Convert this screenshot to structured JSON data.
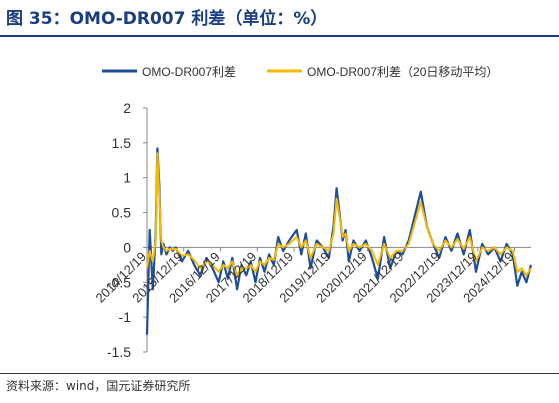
{
  "header": {
    "title": "图 35：OMO-DR007 利差（单位：%）"
  },
  "footer": {
    "source": "资料来源：wind，国元证券研究所"
  },
  "colors": {
    "title": "#1a3e7e",
    "series_daily": "#1f4e99",
    "series_ma": "#f5b800"
  },
  "chart_data": {
    "type": "line",
    "title": "",
    "xlabel": "",
    "ylabel": "",
    "ylim": [
      -1.5,
      2
    ],
    "y_ticks": [
      "2",
      "1.5",
      "1",
      "0.5",
      "0",
      "-0.5",
      "-1",
      "-1.5"
    ],
    "x_ticks": [
      "2014/12/19",
      "2015/12/19",
      "2016/12/19",
      "2017/12/19",
      "2018/12/19",
      "2019/12/19",
      "2020/12/19",
      "2021/12/19",
      "2022/12/19",
      "2023/12/19",
      "2024/12/19"
    ],
    "x_range": [
      "2014/12/19",
      "2025/05/31"
    ],
    "legend": {
      "position": "top",
      "entries": [
        "OMO-DR007利差",
        "OMO-DR007利差（20日移动平均）"
      ]
    },
    "grid": false,
    "series": [
      {
        "name": "OMO-DR007利差",
        "color": "#1f4e99",
        "x": [
          "2014/12/19",
          "2015/01/15",
          "2015/02/15",
          "2015/03/15",
          "2015/04/01",
          "2015/04/20",
          "2015/05/10",
          "2015/06/01",
          "2015/07/01",
          "2015/08/01",
          "2015/09/01",
          "2015/10/01",
          "2015/12/01",
          "2016/02/01",
          "2016/04/01",
          "2016/06/01",
          "2016/08/01",
          "2016/10/01",
          "2016/12/01",
          "2017/01/15",
          "2017/03/01",
          "2017/04/15",
          "2017/06/01",
          "2017/07/15",
          "2017/09/01",
          "2017/10/15",
          "2017/12/01",
          "2018/01/15",
          "2018/03/01",
          "2018/04/15",
          "2018/06/01",
          "2018/07/15",
          "2018/09/01",
          "2018/11/01",
          "2019/01/15",
          "2019/03/01",
          "2019/04/15",
          "2019/06/01",
          "2019/08/01",
          "2019/10/01",
          "2019/12/01",
          "2020/01/15",
          "2020/02/15",
          "2020/03/15",
          "2020/04/15",
          "2020/05/15",
          "2020/06/15",
          "2020/08/01",
          "2020/10/01",
          "2020/12/01",
          "2021/02/01",
          "2021/04/01",
          "2021/06/01",
          "2021/08/01",
          "2021/10/01",
          "2021/12/01",
          "2022/02/01",
          "2022/04/01",
          "2022/06/01",
          "2022/08/01",
          "2022/10/01",
          "2022/12/01",
          "2023/02/01",
          "2023/04/01",
          "2023/06/01",
          "2023/08/01",
          "2023/10/01",
          "2023/12/01",
          "2024/02/01",
          "2024/04/01",
          "2024/06/01",
          "2024/08/01",
          "2024/10/01",
          "2024/12/01",
          "2025/01/15",
          "2025/03/01",
          "2025/04/15",
          "2025/05/31"
        ],
        "values": [
          -1.25,
          0.25,
          -0.6,
          0.2,
          1.42,
          0.9,
          -0.1,
          0.05,
          -0.1,
          0.0,
          -0.05,
          0.0,
          -0.2,
          -0.05,
          -0.25,
          -0.4,
          -0.15,
          -0.3,
          -0.5,
          -0.2,
          -0.45,
          -0.15,
          -0.6,
          -0.25,
          -0.4,
          -0.2,
          -0.5,
          -0.15,
          -0.35,
          -0.1,
          -0.25,
          0.15,
          -0.05,
          0.1,
          0.25,
          -0.1,
          0.2,
          -0.3,
          0.1,
          0.0,
          -0.15,
          0.3,
          0.85,
          0.5,
          0.1,
          0.25,
          -0.2,
          0.1,
          -0.05,
          0.1,
          -0.15,
          -0.45,
          0.15,
          -0.3,
          -0.05,
          -0.1,
          0.1,
          0.45,
          0.8,
          0.3,
          0.05,
          -0.15,
          0.15,
          -0.05,
          0.2,
          -0.1,
          0.25,
          -0.35,
          0.05,
          -0.1,
          0.0,
          -0.2,
          0.05,
          -0.1,
          -0.55,
          -0.35,
          -0.5,
          -0.25
        ]
      },
      {
        "name": "OMO-DR007利差（20日移动平均）",
        "color": "#f5b800",
        "x": [
          "2014/12/19",
          "2015/01/15",
          "2015/02/15",
          "2015/03/15",
          "2015/04/01",
          "2015/04/20",
          "2015/05/10",
          "2015/06/01",
          "2015/07/01",
          "2015/08/01",
          "2015/09/01",
          "2015/10/01",
          "2015/12/01",
          "2016/02/01",
          "2016/04/01",
          "2016/06/01",
          "2016/08/01",
          "2016/10/01",
          "2016/12/01",
          "2017/01/15",
          "2017/03/01",
          "2017/04/15",
          "2017/06/01",
          "2017/07/15",
          "2017/09/01",
          "2017/10/15",
          "2017/12/01",
          "2018/01/15",
          "2018/03/01",
          "2018/04/15",
          "2018/06/01",
          "2018/07/15",
          "2018/09/01",
          "2018/11/01",
          "2019/01/15",
          "2019/03/01",
          "2019/04/15",
          "2019/06/01",
          "2019/08/01",
          "2019/10/01",
          "2019/12/01",
          "2020/01/15",
          "2020/02/15",
          "2020/03/15",
          "2020/04/15",
          "2020/05/15",
          "2020/06/15",
          "2020/08/01",
          "2020/10/01",
          "2020/12/01",
          "2021/02/01",
          "2021/04/01",
          "2021/06/01",
          "2021/08/01",
          "2021/10/01",
          "2021/12/01",
          "2022/02/01",
          "2022/04/01",
          "2022/06/01",
          "2022/08/01",
          "2022/10/01",
          "2022/12/01",
          "2023/02/01",
          "2023/04/01",
          "2023/06/01",
          "2023/08/01",
          "2023/10/01",
          "2023/12/01",
          "2024/02/01",
          "2024/04/01",
          "2024/06/01",
          "2024/08/01",
          "2024/10/01",
          "2024/12/01",
          "2025/01/15",
          "2025/03/01",
          "2025/04/15",
          "2025/05/31"
        ],
        "values": [
          -0.3,
          -0.05,
          -0.2,
          0.1,
          1.35,
          0.75,
          0.1,
          0.0,
          -0.05,
          -0.02,
          -0.03,
          -0.02,
          -0.12,
          -0.1,
          -0.18,
          -0.3,
          -0.2,
          -0.25,
          -0.35,
          -0.25,
          -0.3,
          -0.2,
          -0.4,
          -0.3,
          -0.3,
          -0.25,
          -0.35,
          -0.2,
          -0.25,
          -0.15,
          -0.18,
          0.05,
          0.0,
          0.05,
          0.15,
          0.0,
          0.1,
          -0.15,
          0.05,
          0.0,
          -0.05,
          0.2,
          0.7,
          0.45,
          0.15,
          0.2,
          -0.05,
          0.05,
          0.0,
          0.05,
          -0.05,
          -0.25,
          0.05,
          -0.15,
          -0.05,
          -0.05,
          0.05,
          0.35,
          0.65,
          0.3,
          0.05,
          -0.05,
          0.1,
          0.0,
          0.12,
          -0.02,
          0.15,
          -0.2,
          0.0,
          -0.05,
          0.0,
          -0.1,
          0.0,
          -0.05,
          -0.35,
          -0.3,
          -0.4,
          -0.3
        ]
      }
    ]
  }
}
